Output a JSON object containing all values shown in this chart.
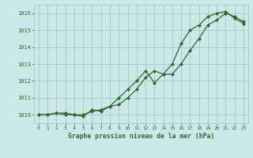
{
  "title": "Graphe pression niveau de la mer (hPa)",
  "bg_color": "#cce8e8",
  "grid_color": "#aacccc",
  "line_color": "#2d6b2d",
  "marker_color": "#2d6b2d",
  "xlim": [
    -0.5,
    23.5
  ],
  "ylim": [
    1009.5,
    1016.5
  ],
  "yticks": [
    1010,
    1011,
    1012,
    1013,
    1014,
    1015,
    1016
  ],
  "xticks": [
    0,
    1,
    2,
    3,
    4,
    5,
    6,
    7,
    8,
    9,
    10,
    11,
    12,
    13,
    14,
    15,
    16,
    17,
    18,
    19,
    20,
    21,
    22,
    23
  ],
  "series1_x": [
    0,
    1,
    2,
    3,
    4,
    5,
    6,
    7,
    8,
    9,
    10,
    11,
    12,
    13,
    14,
    15,
    16,
    17,
    18,
    19,
    20,
    21,
    22,
    23
  ],
  "series1_y": [
    1010.0,
    1010.0,
    1010.1,
    1010.0,
    1010.0,
    1010.0,
    1010.2,
    1010.3,
    1010.5,
    1010.6,
    1011.0,
    1011.5,
    1012.2,
    1012.6,
    1012.4,
    1012.4,
    1013.0,
    1013.8,
    1014.5,
    1015.3,
    1015.6,
    1016.0,
    1015.8,
    1015.5
  ],
  "series2_x": [
    0,
    1,
    2,
    3,
    4,
    5,
    6,
    7,
    8,
    9,
    10,
    11,
    12,
    13,
    14,
    15,
    16,
    17,
    18,
    19,
    20,
    21,
    22,
    23
  ],
  "series2_y": [
    1010.0,
    1010.0,
    1010.1,
    1010.1,
    1010.0,
    1009.9,
    1010.3,
    1010.2,
    1010.5,
    1011.0,
    1011.5,
    1012.0,
    1012.6,
    1011.9,
    1012.4,
    1013.0,
    1014.2,
    1015.0,
    1015.3,
    1015.8,
    1016.0,
    1016.1,
    1015.7,
    1015.4
  ]
}
